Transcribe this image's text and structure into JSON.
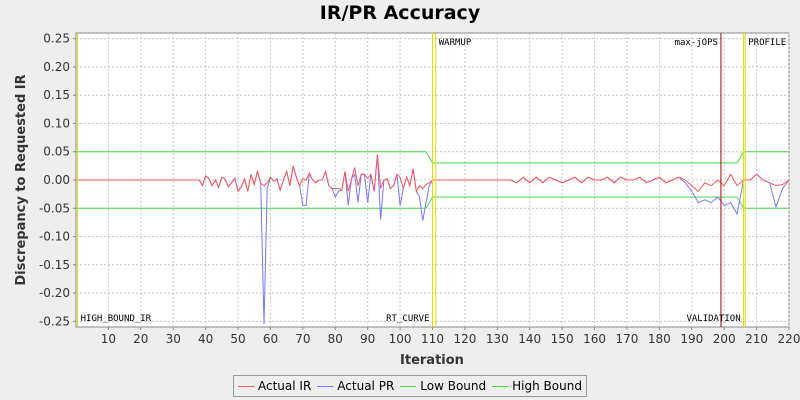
{
  "chart_data": {
    "type": "line",
    "title": "IR/PR Accuracy",
    "xlabel": "Iteration",
    "ylabel": "Discrepancy to Requested IR",
    "xlim": [
      0,
      220
    ],
    "ylim": [
      -0.26,
      0.26
    ],
    "xticks": [
      10,
      20,
      30,
      40,
      50,
      60,
      70,
      80,
      90,
      100,
      110,
      120,
      130,
      140,
      150,
      160,
      170,
      180,
      190,
      200,
      210,
      220
    ],
    "yticks": [
      0.25,
      0.2,
      0.15,
      0.1,
      0.05,
      0.0,
      -0.05,
      -0.1,
      -0.15,
      -0.2,
      -0.25
    ],
    "ytick_labels": [
      "0.25",
      "0.20",
      "0.15",
      "0.10",
      "0.05",
      "0.00",
      "-0.05",
      "-0.10",
      "-0.15",
      "-0.20",
      "-0.25"
    ],
    "grid": true,
    "legend_position": "bottom",
    "series": [
      {
        "name": "Actual IR",
        "color": "#ff5555",
        "x": [
          0,
          38,
          39,
          40,
          41,
          42,
          43,
          44,
          45,
          46,
          47,
          48,
          49,
          50,
          51,
          52,
          53,
          54,
          55,
          56,
          57,
          58,
          59,
          60,
          61,
          62,
          63,
          64,
          65,
          66,
          67,
          68,
          69,
          70,
          71,
          72,
          73,
          74,
          75,
          76,
          77,
          78,
          79,
          80,
          81,
          82,
          83,
          84,
          85,
          86,
          87,
          88,
          89,
          90,
          91,
          92,
          93,
          94,
          95,
          96,
          97,
          98,
          99,
          100,
          101,
          102,
          103,
          104,
          105,
          106,
          107,
          108,
          109,
          110,
          134,
          136,
          138,
          140,
          142,
          144,
          146,
          148,
          150,
          152,
          154,
          156,
          158,
          160,
          162,
          164,
          166,
          168,
          170,
          172,
          174,
          176,
          178,
          180,
          182,
          184,
          186,
          188,
          190,
          192,
          194,
          196,
          198,
          200,
          202,
          204,
          206,
          208,
          210,
          212,
          214,
          216,
          218,
          220
        ],
        "values": [
          0,
          0,
          -0.01,
          0.007,
          0.003,
          -0.01,
          0,
          -0.013,
          0.005,
          0.002,
          -0.012,
          -0.005,
          0.003,
          -0.02,
          -0.012,
          0.002,
          -0.02,
          0.01,
          -0.008,
          0.016,
          -0.006,
          -0.01,
          -0.005,
          0.005,
          -0.002,
          0.002,
          -0.018,
          0,
          0.015,
          -0.01,
          0.025,
          0.005,
          -0.01,
          0.002,
          0,
          0.012,
          0,
          -0.005,
          0,
          0,
          0.015,
          -0.01,
          -0.015,
          -0.015,
          -0.015,
          -0.018,
          0.015,
          -0.02,
          0.002,
          0.022,
          -0.01,
          0.01,
          0.01,
          0.003,
          0.01,
          -0.02,
          0.045,
          -0.015,
          0,
          0.002,
          -0.015,
          -0.01,
          0.01,
          0.005,
          -0.015,
          0.005,
          -0.01,
          0.02,
          -0.02,
          -0.01,
          -0.015,
          -0.008,
          -0.005,
          0,
          0,
          -0.005,
          0.005,
          -0.005,
          0.005,
          -0.005,
          0.005,
          0,
          -0.005,
          0,
          0.005,
          -0.005,
          0.005,
          0,
          0,
          0.005,
          -0.005,
          0.005,
          0,
          0,
          0.005,
          -0.005,
          0,
          0.005,
          -0.005,
          0,
          0.005,
          0,
          -0.01,
          -0.02,
          -0.005,
          -0.01,
          0,
          -0.01,
          0.01,
          -0.01,
          0,
          0,
          0.01,
          0,
          -0.005,
          -0.01,
          -0.008,
          0
        ],
        "note": "Solid lines drawn at about 1.0 width; values approximated from gridlines."
      },
      {
        "name": "Actual PR",
        "color": "#7777ff",
        "x": [
          0,
          38,
          39,
          40,
          41,
          42,
          43,
          44,
          45,
          46,
          47,
          48,
          49,
          50,
          51,
          52,
          53,
          54,
          55,
          56,
          57,
          58,
          59,
          60,
          61,
          62,
          63,
          64,
          65,
          66,
          67,
          68,
          69,
          70,
          71,
          72,
          73,
          74,
          75,
          76,
          77,
          78,
          79,
          80,
          81,
          82,
          83,
          84,
          85,
          86,
          87,
          88,
          89,
          90,
          91,
          92,
          93,
          94,
          95,
          96,
          97,
          98,
          99,
          100,
          101,
          102,
          103,
          104,
          105,
          106,
          107,
          108,
          109,
          110,
          134,
          136,
          138,
          140,
          142,
          144,
          146,
          148,
          150,
          152,
          154,
          156,
          158,
          160,
          162,
          164,
          166,
          168,
          170,
          172,
          174,
          176,
          178,
          180,
          182,
          184,
          186,
          188,
          190,
          192,
          194,
          196,
          198,
          200,
          202,
          204,
          206,
          208,
          210,
          212,
          214,
          216,
          218,
          220
        ],
        "values": [
          0,
          0,
          -0.01,
          0.007,
          0.003,
          -0.01,
          0,
          -0.013,
          0.005,
          0.002,
          -0.012,
          -0.005,
          0.003,
          -0.02,
          -0.012,
          0.002,
          -0.02,
          0.01,
          -0.008,
          0.016,
          -0.006,
          -0.255,
          -0.015,
          0.005,
          -0.002,
          0.002,
          -0.018,
          0,
          0.015,
          -0.01,
          0.025,
          0.005,
          -0.01,
          -0.045,
          -0.045,
          0.012,
          0,
          -0.005,
          0,
          0,
          0.015,
          -0.01,
          -0.015,
          -0.03,
          -0.02,
          -0.018,
          0.015,
          -0.045,
          0.002,
          0.01,
          -0.04,
          0.01,
          0.01,
          -0.04,
          0.01,
          -0.02,
          0.045,
          -0.07,
          0,
          0.002,
          -0.015,
          -0.01,
          0.01,
          -0.045,
          -0.015,
          0.005,
          -0.01,
          0.02,
          -0.02,
          -0.03,
          -0.072,
          -0.04,
          -0.01,
          0,
          0,
          -0.005,
          0.005,
          -0.005,
          0.005,
          -0.005,
          0.005,
          0,
          -0.005,
          0,
          0.005,
          -0.005,
          0.005,
          0,
          0,
          0.005,
          -0.005,
          0.005,
          0,
          0,
          0.005,
          -0.005,
          0,
          0.005,
          -0.005,
          0,
          0.005,
          -0.005,
          -0.02,
          -0.04,
          -0.035,
          -0.04,
          -0.03,
          -0.045,
          -0.04,
          -0.06,
          0,
          0,
          0.01,
          0,
          -0.005,
          -0.048,
          -0.015,
          0
        ]
      },
      {
        "name": "Low Bound",
        "color": "#44dd44",
        "x": [
          0,
          108,
          110,
          134,
          204,
          206,
          220
        ],
        "values": [
          -0.05,
          -0.05,
          -0.03,
          -0.03,
          -0.03,
          -0.05,
          -0.05
        ]
      },
      {
        "name": "High Bound",
        "color": "#44dd44",
        "x": [
          0,
          108,
          110,
          134,
          204,
          206,
          220
        ],
        "values": [
          0.05,
          0.05,
          0.03,
          0.03,
          0.03,
          0.05,
          0.05
        ]
      }
    ],
    "markers": [
      {
        "x": 0.5,
        "color": "#dddd00",
        "label": "HIGH_BOUND_IR",
        "label_pos": "bottom-right"
      },
      {
        "x": 110,
        "color": "#dddd00",
        "label": "RT_CURVE",
        "label_pos": "bottom-left"
      },
      {
        "x": 111,
        "color": "#dddd00",
        "label": "WARMUP",
        "label_pos": "top-right"
      },
      {
        "x": 199,
        "color": "#aa0000",
        "label": "max-jOPS",
        "label_pos": "top-left"
      },
      {
        "x": 206,
        "color": "#dddd00",
        "label": "VALIDATION",
        "label_pos": "bottom-left"
      },
      {
        "x": 206.5,
        "color": "#dddd00",
        "label": "PROFILE",
        "label_pos": "top-right"
      }
    ]
  }
}
